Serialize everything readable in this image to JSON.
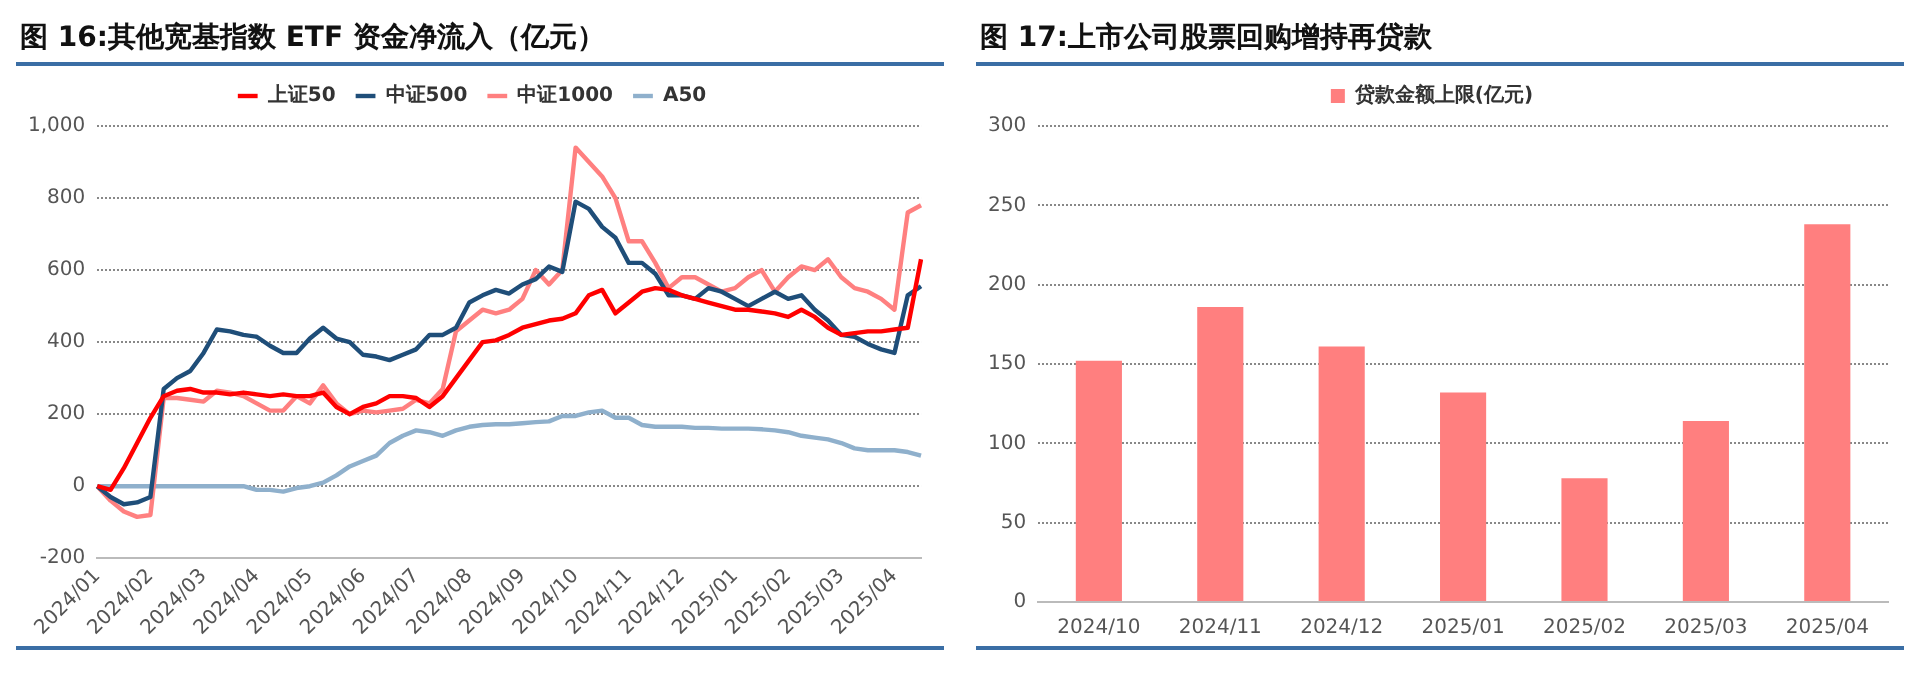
{
  "chart_data": [
    {
      "type": "line",
      "title": "图 16:其他宽基指数 ETF 资金净流入（亿元）",
      "categories": [
        "2024/01",
        null,
        null,
        null,
        "2024/02",
        null,
        null,
        null,
        "2024/03",
        null,
        null,
        null,
        "2024/04",
        null,
        null,
        null,
        "2024/05",
        null,
        null,
        null,
        "2024/06",
        null,
        null,
        null,
        "2024/07",
        null,
        null,
        null,
        "2024/08",
        null,
        null,
        null,
        "2024/09",
        null,
        null,
        null,
        "2024/10",
        null,
        null,
        null,
        "2024/11",
        null,
        null,
        null,
        "2024/12",
        null,
        null,
        null,
        "2025/01",
        null,
        null,
        null,
        "2025/02",
        null,
        null,
        null,
        "2025/03",
        null,
        null,
        null,
        "2025/04",
        null,
        null
      ],
      "series": [
        {
          "name": "上证50",
          "color": "#ff0000",
          "values": [
            0,
            -10,
            50,
            120,
            190,
            250,
            265,
            270,
            260,
            260,
            255,
            260,
            255,
            250,
            255,
            250,
            250,
            260,
            220,
            200,
            220,
            230,
            250,
            250,
            245,
            220,
            250,
            300,
            350,
            400,
            405,
            420,
            440,
            450,
            460,
            465,
            480,
            530,
            545,
            480,
            510,
            540,
            550,
            545,
            530,
            520,
            510,
            500,
            490,
            490,
            485,
            480,
            470,
            490,
            470,
            440,
            420,
            425,
            430,
            430,
            435,
            440,
            630
          ]
        },
        {
          "name": "中证500",
          "color": "#1f4e79",
          "values": [
            0,
            -30,
            -50,
            -45,
            -30,
            270,
            300,
            320,
            370,
            435,
            430,
            420,
            415,
            390,
            370,
            370,
            410,
            440,
            410,
            400,
            365,
            360,
            350,
            365,
            380,
            420,
            420,
            440,
            510,
            530,
            545,
            535,
            560,
            575,
            610,
            595,
            790,
            770,
            720,
            690,
            620,
            620,
            590,
            530,
            530,
            520,
            550,
            540,
            520,
            500,
            520,
            540,
            520,
            530,
            490,
            460,
            420,
            415,
            395,
            380,
            370,
            530,
            555
          ]
        },
        {
          "name": "中证1000",
          "color": "#ff8080",
          "values": [
            0,
            -40,
            -70,
            -85,
            -80,
            245,
            245,
            240,
            235,
            265,
            260,
            250,
            230,
            210,
            210,
            250,
            230,
            280,
            230,
            200,
            210,
            205,
            210,
            215,
            240,
            230,
            270,
            430,
            460,
            490,
            480,
            490,
            520,
            600,
            560,
            600,
            940,
            900,
            860,
            800,
            680,
            680,
            620,
            550,
            580,
            580,
            560,
            540,
            550,
            580,
            600,
            540,
            580,
            610,
            600,
            630,
            580,
            550,
            540,
            520,
            490,
            760,
            780
          ]
        },
        {
          "name": "A50",
          "color": "#8fb0cc",
          "values": [
            0,
            0,
            0,
            0,
            0,
            0,
            0,
            0,
            0,
            0,
            0,
            0,
            -10,
            -10,
            -15,
            -5,
            0,
            10,
            30,
            55,
            70,
            85,
            120,
            140,
            155,
            150,
            140,
            155,
            165,
            170,
            172,
            172,
            175,
            178,
            180,
            195,
            195,
            205,
            210,
            190,
            190,
            170,
            165,
            165,
            165,
            162,
            162,
            160,
            160,
            160,
            158,
            155,
            150,
            140,
            135,
            130,
            120,
            105,
            100,
            100,
            100,
            95,
            85
          ]
        }
      ],
      "ylim": [
        -200,
        1000
      ],
      "yticks": [
        -200,
        0,
        200,
        400,
        600,
        800,
        {
          "value": 1000,
          "label": "1,000"
        }
      ],
      "grid": "y",
      "legend": "top",
      "marker": "none"
    },
    {
      "type": "bar",
      "title": "图 17:上市公司股票回购增持再贷款",
      "categories": [
        "2024/10",
        "2024/11",
        "2024/12",
        "2025/01",
        "2025/02",
        "2025/03",
        "2025/04"
      ],
      "series": [
        {
          "name": "贷款金额上限(亿元)",
          "color": "#ff7f7f",
          "values": [
            152,
            186,
            161,
            132,
            78,
            114,
            238
          ]
        }
      ],
      "ylim": [
        0,
        300
      ],
      "yticks": [
        0,
        50,
        100,
        150,
        200,
        250,
        300
      ],
      "grid": "y",
      "legend": "top"
    }
  ]
}
